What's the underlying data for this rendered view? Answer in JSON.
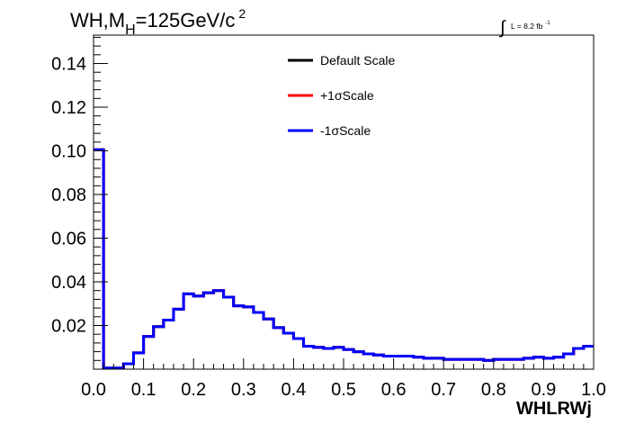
{
  "chart_data": {
    "type": "line",
    "title": {
      "process": "WH,M",
      "subscript": "H",
      "mass": "=125GeV/c",
      "superscript": "2"
    },
    "luminosity": {
      "integral_sign": "∫",
      "text": "L = 8.2 fb",
      "superscript": "-1"
    },
    "xlabel": "WHLRWj",
    "ylabel": "",
    "xlim": [
      0.0,
      1.0
    ],
    "ylim": [
      0.0,
      0.153
    ],
    "x_ticks": [
      "0.0",
      "0.1",
      "0.2",
      "0.3",
      "0.4",
      "0.5",
      "0.6",
      "0.7",
      "0.8",
      "0.9",
      "1.0"
    ],
    "y_ticks": [
      "0.02",
      "0.04",
      "0.06",
      "0.08",
      "0.10",
      "0.12",
      "0.14"
    ],
    "x_tick_values": [
      0.0,
      0.1,
      0.2,
      0.3,
      0.4,
      0.5,
      0.6,
      0.7,
      0.8,
      0.9,
      1.0
    ],
    "y_tick_values": [
      0.02,
      0.04,
      0.06,
      0.08,
      0.1,
      0.12,
      0.14
    ],
    "grid": false,
    "legend_position": "top-center",
    "n_bins": 50,
    "bin_edges": [
      0.0,
      1.0
    ],
    "series": [
      {
        "name": "Default Scale",
        "color": "#000000",
        "values": [
          0.1005,
          0.0005,
          0.0005,
          0.0025,
          0.0075,
          0.015,
          0.0195,
          0.0225,
          0.0275,
          0.0345,
          0.0335,
          0.035,
          0.036,
          0.033,
          0.029,
          0.0285,
          0.026,
          0.023,
          0.019,
          0.0165,
          0.014,
          0.0105,
          0.01,
          0.0095,
          0.01,
          0.009,
          0.008,
          0.007,
          0.0065,
          0.006,
          0.006,
          0.006,
          0.0055,
          0.005,
          0.005,
          0.0045,
          0.0045,
          0.0045,
          0.0045,
          0.004,
          0.0045,
          0.0045,
          0.0045,
          0.005,
          0.0055,
          0.005,
          0.0055,
          0.007,
          0.0095,
          0.0105
        ]
      },
      {
        "name": "+1σScale",
        "color": "#ff0000",
        "values": [
          0.1005,
          0.0005,
          0.0005,
          0.0025,
          0.0075,
          0.015,
          0.0195,
          0.0225,
          0.0275,
          0.0345,
          0.0335,
          0.035,
          0.036,
          0.033,
          0.029,
          0.0285,
          0.026,
          0.023,
          0.019,
          0.0165,
          0.014,
          0.0105,
          0.01,
          0.0095,
          0.01,
          0.009,
          0.008,
          0.007,
          0.0065,
          0.006,
          0.006,
          0.006,
          0.0055,
          0.005,
          0.005,
          0.0045,
          0.0045,
          0.0045,
          0.0045,
          0.004,
          0.0045,
          0.0045,
          0.0045,
          0.005,
          0.0055,
          0.005,
          0.0055,
          0.007,
          0.0095,
          0.0105
        ]
      },
      {
        "name": "-1σScale",
        "color": "#0000ff",
        "values": [
          0.1005,
          0.0005,
          0.0005,
          0.0025,
          0.0075,
          0.015,
          0.0195,
          0.0225,
          0.0275,
          0.0345,
          0.0335,
          0.035,
          0.036,
          0.033,
          0.029,
          0.0285,
          0.026,
          0.023,
          0.019,
          0.0165,
          0.014,
          0.0105,
          0.01,
          0.0095,
          0.01,
          0.009,
          0.008,
          0.007,
          0.0065,
          0.006,
          0.006,
          0.006,
          0.0055,
          0.005,
          0.005,
          0.0045,
          0.0045,
          0.0045,
          0.0045,
          0.004,
          0.0045,
          0.0045,
          0.0045,
          0.005,
          0.0055,
          0.005,
          0.0055,
          0.007,
          0.0095,
          0.0105
        ]
      }
    ]
  }
}
